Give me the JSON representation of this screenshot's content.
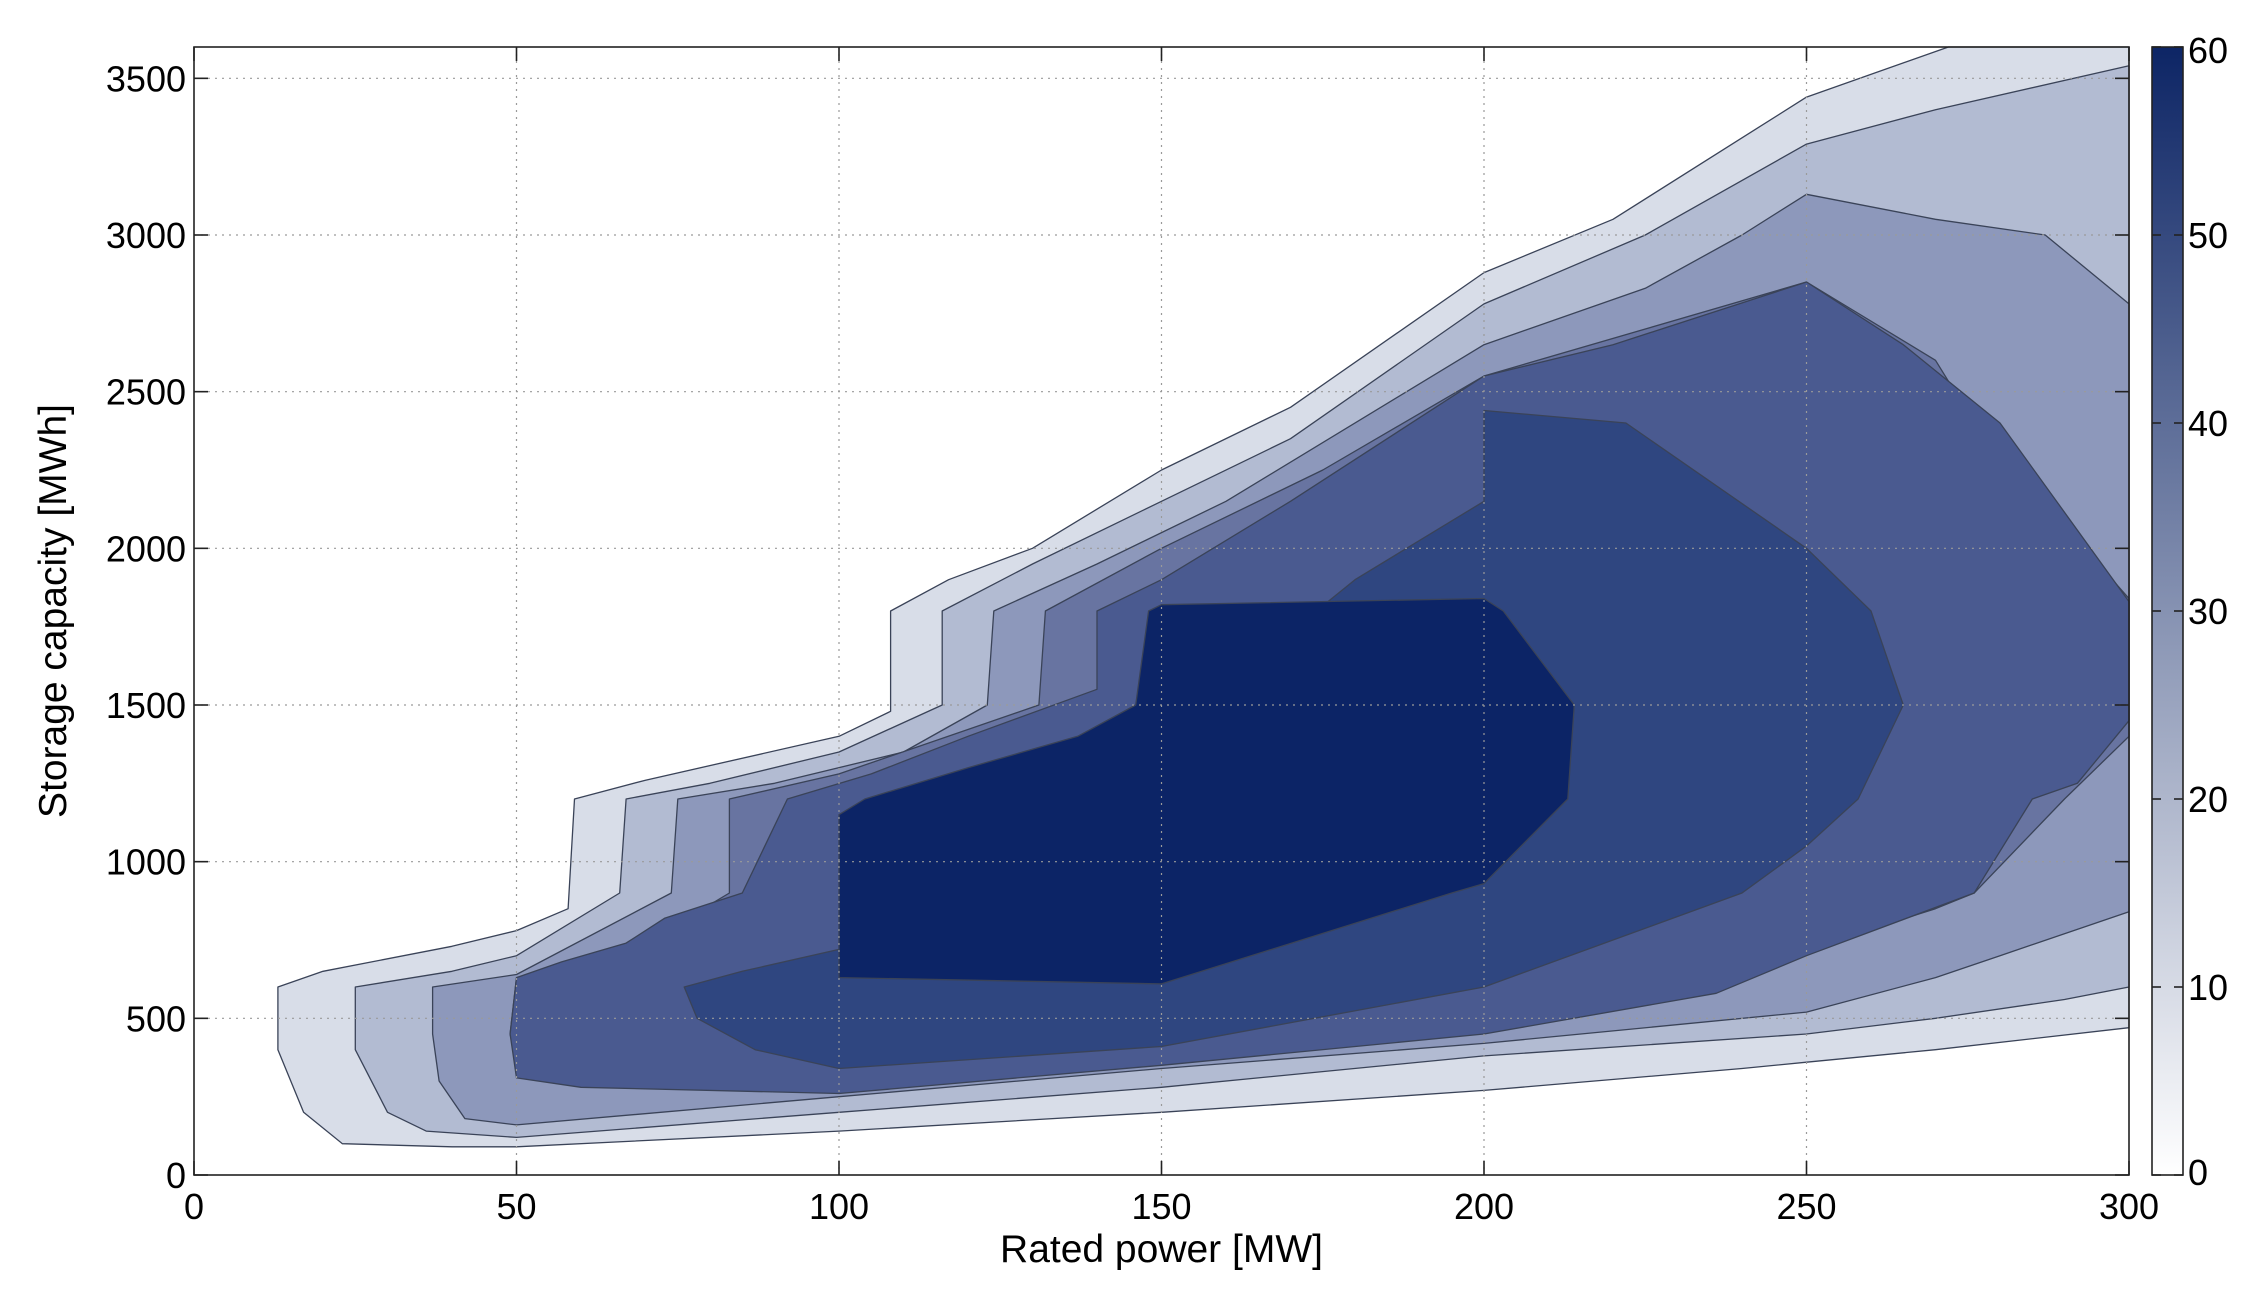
{
  "chart_data": {
    "type": "contour",
    "title": "",
    "xlabel": "Rated power [MW]",
    "ylabel": "Storage capacity [MWh]",
    "xlim": [
      0,
      300
    ],
    "ylim": [
      0,
      3600
    ],
    "xticks": [
      0,
      50,
      100,
      150,
      200,
      250,
      300
    ],
    "yticks": [
      0,
      500,
      1000,
      1500,
      2000,
      2500,
      3000,
      3500
    ],
    "grid": true,
    "colorbar": {
      "placement": "right",
      "range": [
        0,
        60
      ],
      "ticks": [
        0,
        10,
        20,
        30,
        40,
        50,
        60
      ],
      "colors": [
        "#ffffff",
        "#0d2565"
      ]
    },
    "levels": [
      {
        "level": 0,
        "color": "#d8dde8",
        "points": [
          [
            13,
            600
          ],
          [
            20,
            650
          ],
          [
            40,
            730
          ],
          [
            50,
            780
          ],
          [
            58,
            850
          ],
          [
            59,
            1200
          ],
          [
            70,
            1260
          ],
          [
            100,
            1400
          ],
          [
            108,
            1480
          ],
          [
            108,
            1800
          ],
          [
            117,
            1900
          ],
          [
            130,
            2000
          ],
          [
            150,
            2250
          ],
          [
            170,
            2450
          ],
          [
            200,
            2880
          ],
          [
            220,
            3050
          ],
          [
            250,
            3440
          ],
          [
            272,
            3600
          ],
          [
            300,
            3600
          ],
          [
            300,
            470
          ],
          [
            270,
            400
          ],
          [
            250,
            360
          ],
          [
            240,
            340
          ],
          [
            200,
            270
          ],
          [
            150,
            200
          ],
          [
            100,
            140
          ],
          [
            50,
            90
          ],
          [
            40,
            90
          ],
          [
            23,
            100
          ],
          [
            17,
            200
          ],
          [
            13,
            400
          ]
        ]
      },
      {
        "level": 10,
        "color": "#b2bbd2",
        "points": [
          [
            25,
            600
          ],
          [
            40,
            650
          ],
          [
            50,
            700
          ],
          [
            66,
            900
          ],
          [
            67,
            1200
          ],
          [
            80,
            1250
          ],
          [
            100,
            1350
          ],
          [
            116,
            1500
          ],
          [
            116,
            1800
          ],
          [
            130,
            1950
          ],
          [
            150,
            2150
          ],
          [
            170,
            2350
          ],
          [
            200,
            2780
          ],
          [
            225,
            3000
          ],
          [
            250,
            3290
          ],
          [
            270,
            3400
          ],
          [
            300,
            3540
          ],
          [
            300,
            600
          ],
          [
            290,
            560
          ],
          [
            270,
            500
          ],
          [
            250,
            450
          ],
          [
            200,
            380
          ],
          [
            150,
            280
          ],
          [
            100,
            200
          ],
          [
            50,
            120
          ],
          [
            36,
            140
          ],
          [
            30,
            200
          ],
          [
            25,
            400
          ]
        ]
      },
      {
        "level": 20,
        "color": "#8d98bb",
        "points": [
          [
            37,
            600
          ],
          [
            50,
            640
          ],
          [
            74,
            900
          ],
          [
            75,
            1200
          ],
          [
            90,
            1250
          ],
          [
            110,
            1350
          ],
          [
            123,
            1500
          ],
          [
            124,
            1800
          ],
          [
            140,
            1950
          ],
          [
            160,
            2150
          ],
          [
            200,
            2650
          ],
          [
            225,
            2830
          ],
          [
            240,
            3000
          ],
          [
            250,
            3130
          ],
          [
            270,
            3050
          ],
          [
            287,
            3000
          ],
          [
            300,
            2780
          ],
          [
            300,
            840
          ],
          [
            280,
            700
          ],
          [
            270,
            630
          ],
          [
            250,
            520
          ],
          [
            200,
            420
          ],
          [
            150,
            340
          ],
          [
            100,
            250
          ],
          [
            50,
            160
          ],
          [
            42,
            180
          ],
          [
            38,
            300
          ],
          [
            37,
            450
          ]
        ]
      },
      {
        "level": 30,
        "color": "#6874a1",
        "points": [
          [
            50,
            630
          ],
          [
            60,
            680
          ],
          [
            70,
            740
          ],
          [
            83,
            900
          ],
          [
            83,
            1200
          ],
          [
            100,
            1280
          ],
          [
            131,
            1500
          ],
          [
            132,
            1800
          ],
          [
            150,
            2000
          ],
          [
            175,
            2250
          ],
          [
            200,
            2550
          ],
          [
            225,
            2700
          ],
          [
            250,
            2850
          ],
          [
            270,
            2600
          ],
          [
            276,
            2400
          ],
          [
            300,
            1840
          ],
          [
            300,
            1400
          ],
          [
            290,
            1200
          ],
          [
            276,
            900
          ],
          [
            270,
            850
          ],
          [
            250,
            720
          ],
          [
            230,
            630
          ],
          [
            200,
            500
          ],
          [
            150,
            400
          ],
          [
            100,
            320
          ],
          [
            75,
            310
          ],
          [
            60,
            320
          ],
          [
            50,
            360
          ],
          [
            49,
            450
          ]
        ]
      },
      {
        "level": 40,
        "color": "#4a5a90",
        "points": [
          [
            50,
            630
          ],
          [
            57,
            680
          ],
          [
            67,
            740
          ],
          [
            73,
            820
          ],
          [
            85,
            900
          ],
          [
            92,
            1200
          ],
          [
            105,
            1280
          ],
          [
            120,
            1400
          ],
          [
            140,
            1550
          ],
          [
            140,
            1800
          ],
          [
            150,
            1900
          ],
          [
            170,
            2150
          ],
          [
            200,
            2550
          ],
          [
            220,
            2650
          ],
          [
            250,
            2850
          ],
          [
            265,
            2650
          ],
          [
            280,
            2400
          ],
          [
            300,
            1830
          ],
          [
            300,
            1450
          ],
          [
            292,
            1250
          ],
          [
            285,
            1200
          ],
          [
            276,
            900
          ],
          [
            250,
            700
          ],
          [
            236,
            580
          ],
          [
            200,
            450
          ],
          [
            150,
            350
          ],
          [
            100,
            260
          ],
          [
            60,
            280
          ],
          [
            50,
            310
          ],
          [
            49,
            450
          ]
        ]
      },
      {
        "level": 50,
        "color": "#2f4680",
        "points": [
          [
            76,
            600
          ],
          [
            85,
            650
          ],
          [
            100,
            720
          ],
          [
            116,
            850
          ],
          [
            131,
            1100
          ],
          [
            150,
            1400
          ],
          [
            165,
            1650
          ],
          [
            180,
            1900
          ],
          [
            200,
            2150
          ],
          [
            200,
            2440
          ],
          [
            222,
            2400
          ],
          [
            250,
            2000
          ],
          [
            260,
            1800
          ],
          [
            265,
            1500
          ],
          [
            258,
            1200
          ],
          [
            250,
            1050
          ],
          [
            240,
            900
          ],
          [
            200,
            600
          ],
          [
            150,
            410
          ],
          [
            100,
            340
          ],
          [
            87,
            400
          ],
          [
            78,
            500
          ]
        ]
      },
      {
        "level": 60,
        "color": "#0c2466",
        "points": [
          [
            100,
            630
          ],
          [
            100,
            1150
          ],
          [
            104,
            1200
          ],
          [
            120,
            1300
          ],
          [
            137,
            1400
          ],
          [
            146,
            1500
          ],
          [
            148,
            1800
          ],
          [
            150,
            1820
          ],
          [
            200,
            1840
          ],
          [
            203,
            1800
          ],
          [
            214,
            1500
          ],
          [
            213,
            1200
          ],
          [
            200,
            930
          ],
          [
            195,
            900
          ],
          [
            150,
            610
          ],
          [
            100,
            630
          ]
        ]
      }
    ]
  }
}
